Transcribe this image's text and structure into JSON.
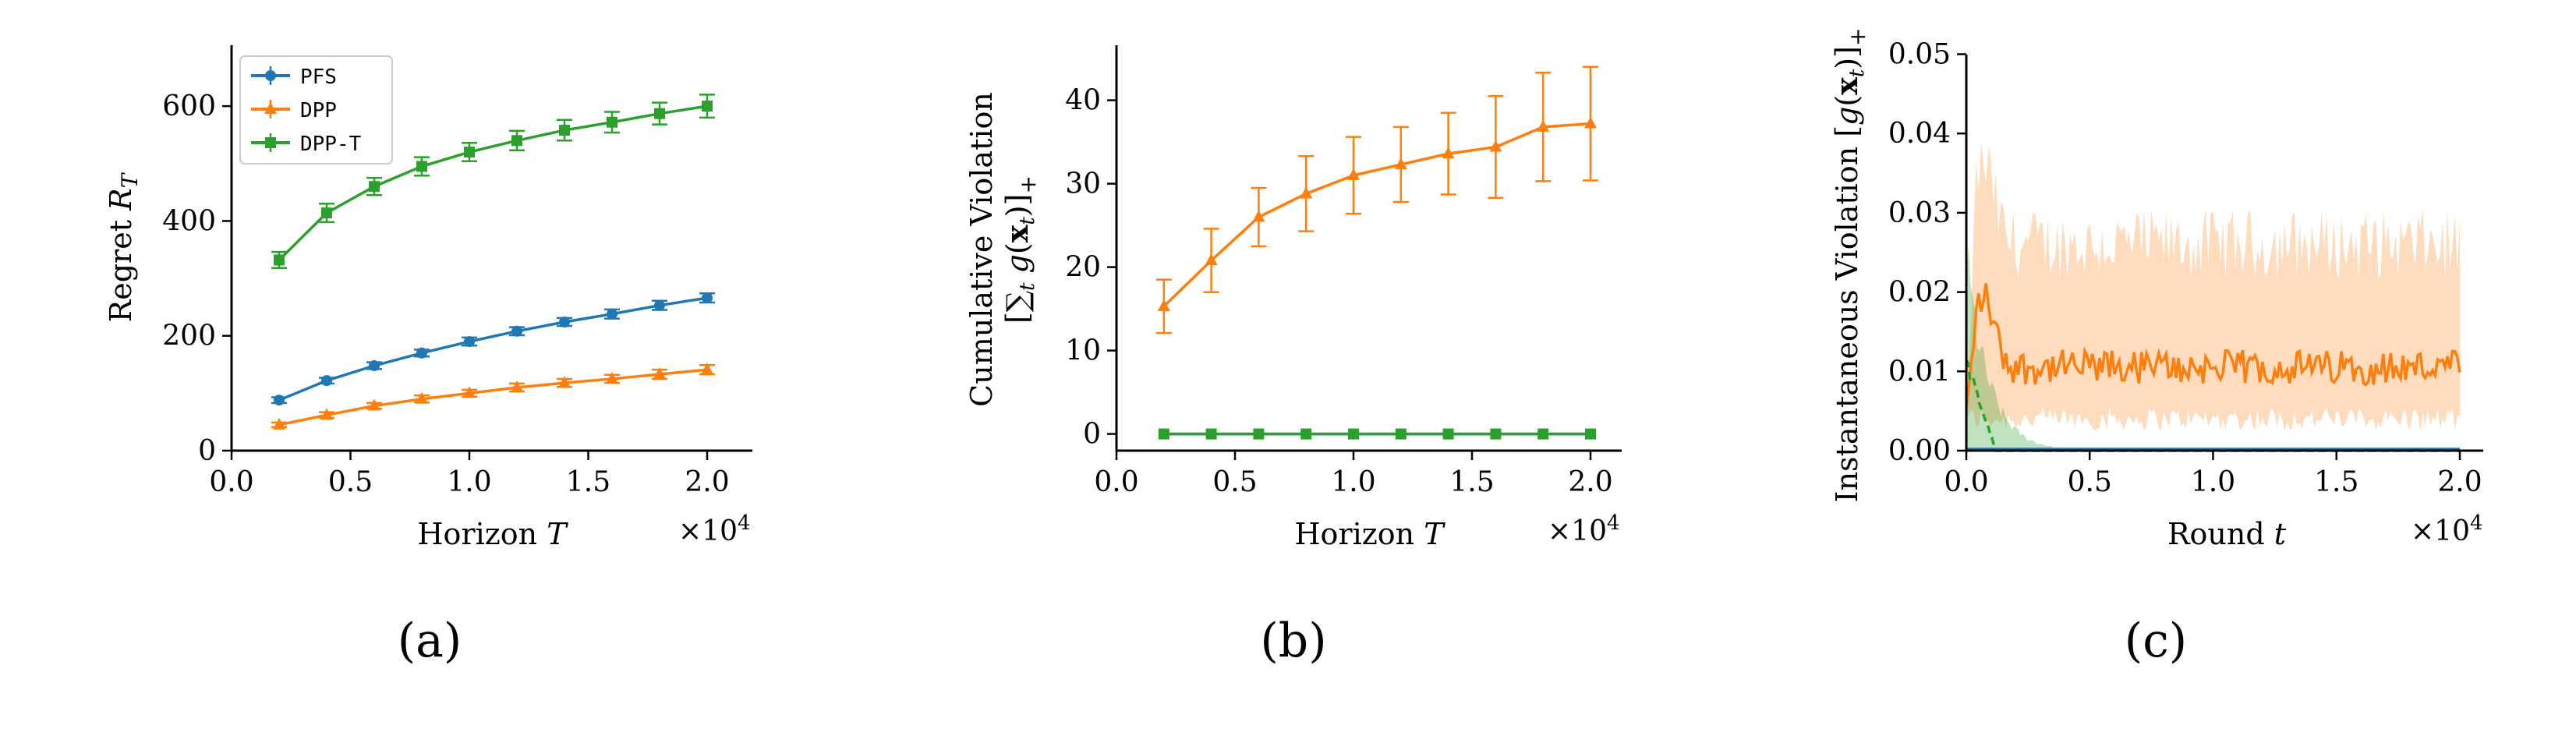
{
  "figure": {
    "panel_captions": [
      "(a)",
      "(b)",
      "(c)"
    ],
    "legend": [
      {
        "label": "PFS",
        "color": "#1f77b4",
        "marker": "circle"
      },
      {
        "label": "DPP",
        "color": "#ff7f0e",
        "marker": "triangle"
      },
      {
        "label": "DPP-T",
        "color": "#2ca02c",
        "marker": "square"
      }
    ]
  },
  "chart_data": [
    {
      "type": "line",
      "caption": "(a)",
      "xlabel": "Horizon T",
      "ylabel": "Regret R_T",
      "x_multiplier": "×10^4",
      "xlim": [
        0,
        2.0
      ],
      "ylim": [
        0,
        670
      ],
      "xticks": [
        "0.0",
        "0.5",
        "1.0",
        "1.5",
        "2.0"
      ],
      "yticks": [
        "0",
        "200",
        "400",
        "600"
      ],
      "x": [
        0.2,
        0.4,
        0.6,
        0.8,
        1.0,
        1.2,
        1.4,
        1.6,
        1.8,
        2.0
      ],
      "series": [
        {
          "name": "PFS",
          "color": "#1f77b4",
          "marker": "circle",
          "values": [
            88,
            122,
            148,
            170,
            190,
            208,
            224,
            238,
            253,
            266
          ],
          "err": [
            5,
            5,
            6,
            6,
            7,
            7,
            7,
            8,
            8,
            8
          ]
        },
        {
          "name": "DPP",
          "color": "#ff7f0e",
          "marker": "triangle",
          "values": [
            45,
            62,
            78,
            90,
            100,
            110,
            118,
            125,
            133,
            141
          ],
          "err": [
            4,
            5,
            5,
            6,
            6,
            7,
            7,
            7,
            8,
            8
          ]
        },
        {
          "name": "DPP-T",
          "color": "#2ca02c",
          "marker": "square",
          "values": [
            332,
            414,
            460,
            495,
            520,
            540,
            558,
            572,
            587,
            600
          ],
          "err": [
            14,
            16,
            15,
            16,
            16,
            17,
            18,
            18,
            19,
            20
          ]
        }
      ]
    },
    {
      "type": "line",
      "caption": "(b)",
      "xlabel": "Horizon T",
      "ylabel_lines": [
        "Cumulative Violation",
        "[∑t g(xt)]+"
      ],
      "x_multiplier": "×10^4",
      "xlim": [
        0,
        2.0
      ],
      "ylim": [
        -2,
        46
      ],
      "xticks": [
        "0.0",
        "0.5",
        "1.0",
        "1.5",
        "2.0"
      ],
      "yticks": [
        "0",
        "10",
        "20",
        "30",
        "40"
      ],
      "x": [
        0.2,
        0.4,
        0.6,
        0.8,
        1.0,
        1.2,
        1.4,
        1.6,
        1.8,
        2.0
      ],
      "series": [
        {
          "name": "DPP",
          "color": "#ff7f0e",
          "marker": "triangle",
          "values": [
            15.3,
            20.8,
            26.0,
            28.8,
            31.0,
            32.3,
            33.6,
            34.4,
            36.8,
            37.2
          ],
          "err": [
            3.2,
            3.8,
            3.5,
            4.5,
            4.6,
            4.5,
            4.9,
            6.1,
            6.5,
            6.8
          ]
        },
        {
          "name": "PFS",
          "color": "#1f77b4",
          "marker": "circle",
          "values": [
            0,
            0,
            0,
            0,
            0,
            0,
            0,
            0,
            0,
            0
          ],
          "err": [
            0,
            0,
            0,
            0,
            0,
            0,
            0,
            0,
            0,
            0
          ]
        },
        {
          "name": "DPP-T",
          "color": "#2ca02c",
          "marker": "square",
          "values": [
            0,
            0,
            0,
            0,
            0,
            0,
            0,
            0,
            0,
            0
          ],
          "err": [
            0,
            0,
            0,
            0,
            0,
            0,
            0,
            0,
            0,
            0
          ]
        }
      ]
    },
    {
      "type": "line",
      "caption": "(c)",
      "xlabel": "Round t",
      "ylabel": "Instantaneous Violation [g(xt)]+",
      "x_multiplier": "×10^4",
      "xlim": [
        0,
        2.0
      ],
      "ylim": [
        0,
        0.05
      ],
      "xticks": [
        "0.0",
        "0.5",
        "1.0",
        "1.5",
        "2.0"
      ],
      "yticks": [
        "0.00",
        "0.01",
        "0.02",
        "0.03",
        "0.04",
        "0.05"
      ],
      "series": [
        {
          "name": "DPP",
          "color": "#ff7f0e",
          "style": "solid",
          "mean_level": 0.0105,
          "mean_noise": 0.0022,
          "early_peak": 0.0195,
          "band_upper_level": 0.026,
          "band_upper_noise": 0.0045,
          "band_upper_peak": 0.036,
          "band_lower_level": 0.004
        },
        {
          "name": "DPP-T",
          "color": "#2ca02c",
          "style": "dashed",
          "initial_value": 0.011,
          "decay_to_zero_by": 0.12,
          "band_upper_peak": 0.024
        },
        {
          "name": "PFS",
          "color": "#1f77b4",
          "style": "solid",
          "constant_value": 0.0
        }
      ]
    }
  ]
}
